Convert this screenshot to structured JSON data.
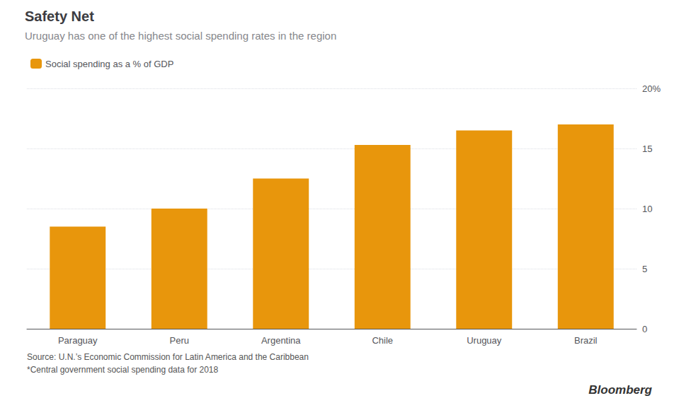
{
  "chart_data": {
    "type": "bar",
    "title": "Safety Net",
    "subtitle": "Uruguay has one of the highest social spending rates in the region",
    "categories": [
      "Paraguay",
      "Peru",
      "Argentina",
      "Chile",
      "Uruguay",
      "Brazil"
    ],
    "series": [
      {
        "name": "Social spending as a % of GDP",
        "color": "#E8960C",
        "values": [
          8.5,
          10.0,
          12.5,
          15.3,
          16.5,
          17.0
        ]
      }
    ],
    "ylim": [
      0,
      20
    ],
    "yticks": [
      0,
      5,
      10,
      15,
      {
        "value": 20,
        "label": "20%"
      }
    ],
    "grid": true,
    "legend": "upper left",
    "annotations": [
      "Source: U.N.’s Economic Commission for Latin America and the Caribbean",
      "*Central government social spending data for 2018",
      "Bloomberg"
    ]
  }
}
